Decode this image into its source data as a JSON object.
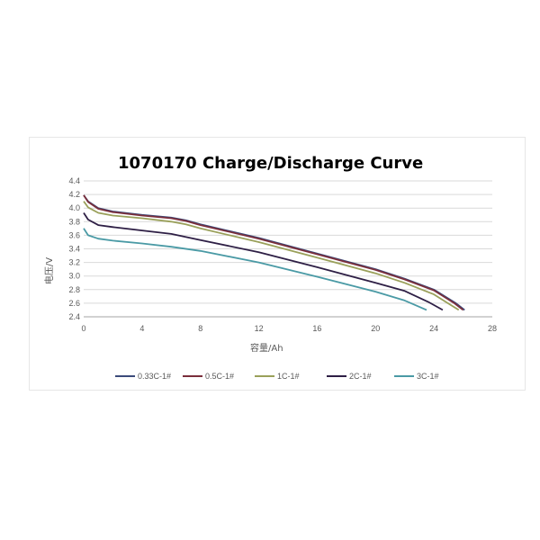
{
  "chart_data": {
    "type": "line",
    "title": "1070170 Charge/Discharge Curve",
    "xlabel": "容量/Ah",
    "ylabel": "电压/V",
    "xlim": [
      0,
      28
    ],
    "ylim": [
      2.4,
      4.4
    ],
    "xticks": [
      "0",
      "4",
      "8",
      "12",
      "16",
      "20",
      "24",
      "28"
    ],
    "yticks": [
      "2.4",
      "2.6",
      "2.8",
      "3.0",
      "3.2",
      "3.4",
      "3.6",
      "3.8",
      "4.0",
      "4.2",
      "4.4"
    ],
    "grid": "horizontal",
    "legend_position": "bottom",
    "series": [
      {
        "name": "0.33C-1#",
        "color": "#3b4a7a",
        "points": [
          [
            0,
            4.19
          ],
          [
            0.3,
            4.1
          ],
          [
            1,
            4.0
          ],
          [
            2,
            3.95
          ],
          [
            4,
            3.9
          ],
          [
            6,
            3.86
          ],
          [
            7,
            3.82
          ],
          [
            8,
            3.76
          ],
          [
            12,
            3.56
          ],
          [
            16,
            3.33
          ],
          [
            20,
            3.1
          ],
          [
            22,
            2.96
          ],
          [
            24,
            2.8
          ],
          [
            25.5,
            2.6
          ],
          [
            26.1,
            2.5
          ]
        ]
      },
      {
        "name": "0.5C-1#",
        "color": "#7a2e3b",
        "points": [
          [
            0,
            4.19
          ],
          [
            0.3,
            4.09
          ],
          [
            1,
            3.99
          ],
          [
            2,
            3.94
          ],
          [
            4,
            3.89
          ],
          [
            6,
            3.85
          ],
          [
            7,
            3.81
          ],
          [
            8,
            3.75
          ],
          [
            12,
            3.55
          ],
          [
            16,
            3.32
          ],
          [
            20,
            3.09
          ],
          [
            22,
            2.95
          ],
          [
            24,
            2.79
          ],
          [
            25.4,
            2.6
          ],
          [
            26.0,
            2.5
          ]
        ]
      },
      {
        "name": "1C-1#",
        "color": "#9aa05a",
        "points": [
          [
            0,
            4.1
          ],
          [
            0.3,
            4.01
          ],
          [
            1,
            3.93
          ],
          [
            2,
            3.89
          ],
          [
            4,
            3.85
          ],
          [
            6,
            3.8
          ],
          [
            7,
            3.76
          ],
          [
            8,
            3.7
          ],
          [
            12,
            3.5
          ],
          [
            16,
            3.27
          ],
          [
            20,
            3.04
          ],
          [
            22,
            2.9
          ],
          [
            24,
            2.73
          ],
          [
            25.1,
            2.58
          ],
          [
            25.7,
            2.5
          ]
        ]
      },
      {
        "name": "2C-1#",
        "color": "#2e1f45",
        "points": [
          [
            0,
            3.93
          ],
          [
            0.3,
            3.83
          ],
          [
            1,
            3.75
          ],
          [
            2,
            3.72
          ],
          [
            4,
            3.67
          ],
          [
            6,
            3.62
          ],
          [
            8,
            3.53
          ],
          [
            12,
            3.35
          ],
          [
            16,
            3.13
          ],
          [
            20,
            2.9
          ],
          [
            22,
            2.78
          ],
          [
            23.6,
            2.62
          ],
          [
            24.6,
            2.5
          ]
        ]
      },
      {
        "name": "3C-1#",
        "color": "#4a9aa5",
        "points": [
          [
            0,
            3.7
          ],
          [
            0.3,
            3.6
          ],
          [
            1,
            3.55
          ],
          [
            2,
            3.52
          ],
          [
            4,
            3.48
          ],
          [
            6,
            3.43
          ],
          [
            8,
            3.37
          ],
          [
            12,
            3.2
          ],
          [
            16,
            2.99
          ],
          [
            20,
            2.77
          ],
          [
            22,
            2.64
          ],
          [
            23.5,
            2.5
          ]
        ]
      }
    ]
  }
}
